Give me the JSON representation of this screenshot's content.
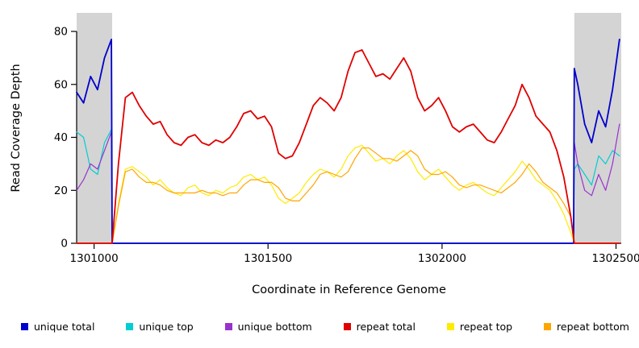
{
  "chart_data": {
    "type": "line",
    "title": "",
    "xlabel": "Coordinate in Reference Genome",
    "ylabel": "Read Coverage Depth",
    "xlim": [
      1300950,
      1302515
    ],
    "ylim": [
      0,
      87
    ],
    "x_ticks": [
      1301000,
      1301500,
      1302000,
      1302500
    ],
    "y_ticks": [
      0,
      20,
      40,
      60,
      80
    ],
    "grid": false,
    "legend_position": "bottom",
    "background_regions": [
      {
        "name": "unique-region-left",
        "x0": 1300950,
        "x1": 1301052,
        "color": "#d4d4d4"
      },
      {
        "name": "unique-region-right",
        "x0": 1302380,
        "x1": 1302515,
        "color": "#d4d4d4"
      }
    ],
    "x": [
      1300950,
      1300970,
      1300990,
      1301010,
      1301030,
      1301050,
      1301052,
      1301070,
      1301090,
      1301110,
      1301130,
      1301150,
      1301170,
      1301190,
      1301210,
      1301230,
      1301250,
      1301270,
      1301290,
      1301310,
      1301330,
      1301350,
      1301370,
      1301390,
      1301410,
      1301430,
      1301450,
      1301470,
      1301490,
      1301510,
      1301530,
      1301550,
      1301570,
      1301590,
      1301610,
      1301630,
      1301650,
      1301670,
      1301690,
      1301710,
      1301730,
      1301750,
      1301770,
      1301790,
      1301810,
      1301830,
      1301850,
      1301870,
      1301890,
      1301910,
      1301930,
      1301950,
      1301970,
      1301990,
      1302010,
      1302030,
      1302050,
      1302070,
      1302090,
      1302110,
      1302130,
      1302150,
      1302170,
      1302190,
      1302210,
      1302230,
      1302250,
      1302270,
      1302290,
      1302310,
      1302330,
      1302350,
      1302370,
      1302378,
      1302380,
      1302390,
      1302410,
      1302430,
      1302450,
      1302470,
      1302490,
      1302510
    ],
    "series": [
      {
        "name": "unique total",
        "color": "#0000cc",
        "values": [
          57,
          53,
          63,
          58,
          70,
          77,
          0,
          0,
          0,
          0,
          0,
          0,
          0,
          0,
          0,
          0,
          0,
          0,
          0,
          0,
          0,
          0,
          0,
          0,
          0,
          0,
          0,
          0,
          0,
          0,
          0,
          0,
          0,
          0,
          0,
          0,
          0,
          0,
          0,
          0,
          0,
          0,
          0,
          0,
          0,
          0,
          0,
          0,
          0,
          0,
          0,
          0,
          0,
          0,
          0,
          0,
          0,
          0,
          0,
          0,
          0,
          0,
          0,
          0,
          0,
          0,
          0,
          0,
          0,
          0,
          0,
          0,
          0,
          0,
          66,
          60,
          45,
          38,
          50,
          44,
          58,
          77
        ]
      },
      {
        "name": "unique top",
        "color": "#00ced1",
        "values": [
          42,
          40,
          28,
          26,
          38,
          43,
          0,
          0,
          0,
          0,
          0,
          0,
          0,
          0,
          0,
          0,
          0,
          0,
          0,
          0,
          0,
          0,
          0,
          0,
          0,
          0,
          0,
          0,
          0,
          0,
          0,
          0,
          0,
          0,
          0,
          0,
          0,
          0,
          0,
          0,
          0,
          0,
          0,
          0,
          0,
          0,
          0,
          0,
          0,
          0,
          0,
          0,
          0,
          0,
          0,
          0,
          0,
          0,
          0,
          0,
          0,
          0,
          0,
          0,
          0,
          0,
          0,
          0,
          0,
          0,
          0,
          0,
          0,
          0,
          28,
          30,
          26,
          22,
          33,
          30,
          35,
          33
        ]
      },
      {
        "name": "unique bottom",
        "color": "#9932cc",
        "values": [
          20,
          24,
          30,
          28,
          35,
          42,
          0,
          0,
          0,
          0,
          0,
          0,
          0,
          0,
          0,
          0,
          0,
          0,
          0,
          0,
          0,
          0,
          0,
          0,
          0,
          0,
          0,
          0,
          0,
          0,
          0,
          0,
          0,
          0,
          0,
          0,
          0,
          0,
          0,
          0,
          0,
          0,
          0,
          0,
          0,
          0,
          0,
          0,
          0,
          0,
          0,
          0,
          0,
          0,
          0,
          0,
          0,
          0,
          0,
          0,
          0,
          0,
          0,
          0,
          0,
          0,
          0,
          0,
          0,
          0,
          0,
          0,
          0,
          0,
          38,
          30,
          20,
          18,
          26,
          20,
          30,
          45
        ]
      },
      {
        "name": "repeat total",
        "color": "#e00000",
        "values": [
          0,
          0,
          0,
          0,
          0,
          0,
          0,
          30,
          55,
          57,
          52,
          48,
          45,
          46,
          41,
          38,
          37,
          40,
          41,
          38,
          37,
          39,
          38,
          40,
          44,
          49,
          50,
          47,
          48,
          44,
          34,
          32,
          33,
          38,
          45,
          52,
          55,
          53,
          50,
          55,
          65,
          72,
          73,
          68,
          63,
          64,
          62,
          66,
          70,
          65,
          55,
          50,
          52,
          55,
          50,
          44,
          42,
          44,
          45,
          42,
          39,
          38,
          42,
          47,
          52,
          60,
          55,
          48,
          45,
          42,
          35,
          25,
          10,
          2,
          0,
          0,
          0,
          0,
          0,
          0,
          0,
          0
        ]
      },
      {
        "name": "repeat top",
        "color": "#ffeb00",
        "values": [
          0,
          0,
          0,
          0,
          0,
          0,
          0,
          15,
          28,
          29,
          27,
          25,
          22,
          24,
          21,
          19,
          18,
          21,
          22,
          19,
          18,
          20,
          19,
          21,
          22,
          25,
          26,
          24,
          25,
          22,
          17,
          15,
          17,
          19,
          23,
          26,
          28,
          27,
          25,
          28,
          33,
          36,
          37,
          34,
          31,
          32,
          30,
          33,
          35,
          32,
          27,
          24,
          26,
          28,
          25,
          22,
          20,
          22,
          23,
          21,
          19,
          18,
          21,
          24,
          27,
          31,
          28,
          24,
          22,
          20,
          16,
          11,
          4,
          1,
          0,
          0,
          0,
          0,
          0,
          0,
          0,
          0
        ]
      },
      {
        "name": "repeat bottom",
        "color": "#ffa500",
        "values": [
          0,
          0,
          0,
          0,
          0,
          0,
          0,
          14,
          27,
          28,
          25,
          23,
          23,
          22,
          20,
          19,
          19,
          19,
          19,
          20,
          19,
          19,
          18,
          19,
          19,
          22,
          24,
          24,
          23,
          23,
          21,
          17,
          16,
          16,
          19,
          22,
          26,
          27,
          26,
          25,
          27,
          32,
          36,
          36,
          34,
          32,
          32,
          31,
          33,
          35,
          33,
          28,
          26,
          26,
          27,
          25,
          22,
          21,
          22,
          22,
          21,
          20,
          19,
          21,
          23,
          26,
          30,
          27,
          23,
          21,
          19,
          15,
          10,
          1,
          0,
          0,
          0,
          0,
          0,
          0,
          0,
          0
        ]
      }
    ]
  }
}
